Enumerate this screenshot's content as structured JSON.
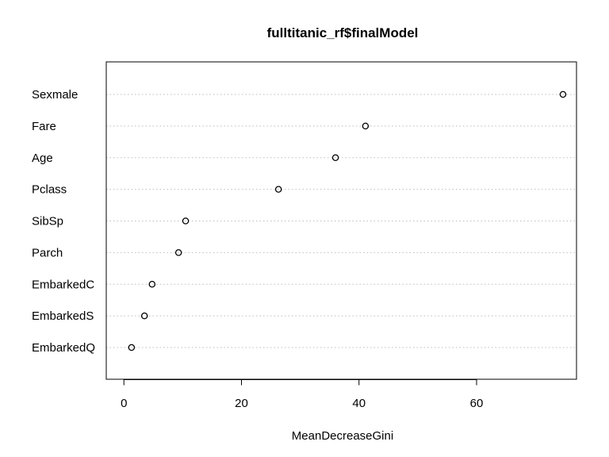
{
  "chart_data": {
    "type": "scatter",
    "title": "fulltitanic_rf$finalModel",
    "xlabel": "MeanDecreaseGini",
    "ylabel": "",
    "xlim": [
      -3,
      77
    ],
    "x_ticks": [
      0,
      20,
      40,
      60
    ],
    "grid": "dotted horizontal guide lines",
    "categories": [
      "Sexmale",
      "Fare",
      "Age",
      "Pclass",
      "SibSp",
      "Parch",
      "EmbarkedC",
      "EmbarkedS",
      "EmbarkedQ"
    ],
    "values": [
      74.7,
      41.1,
      36.0,
      26.3,
      10.5,
      9.3,
      4.8,
      3.5,
      1.3
    ]
  }
}
